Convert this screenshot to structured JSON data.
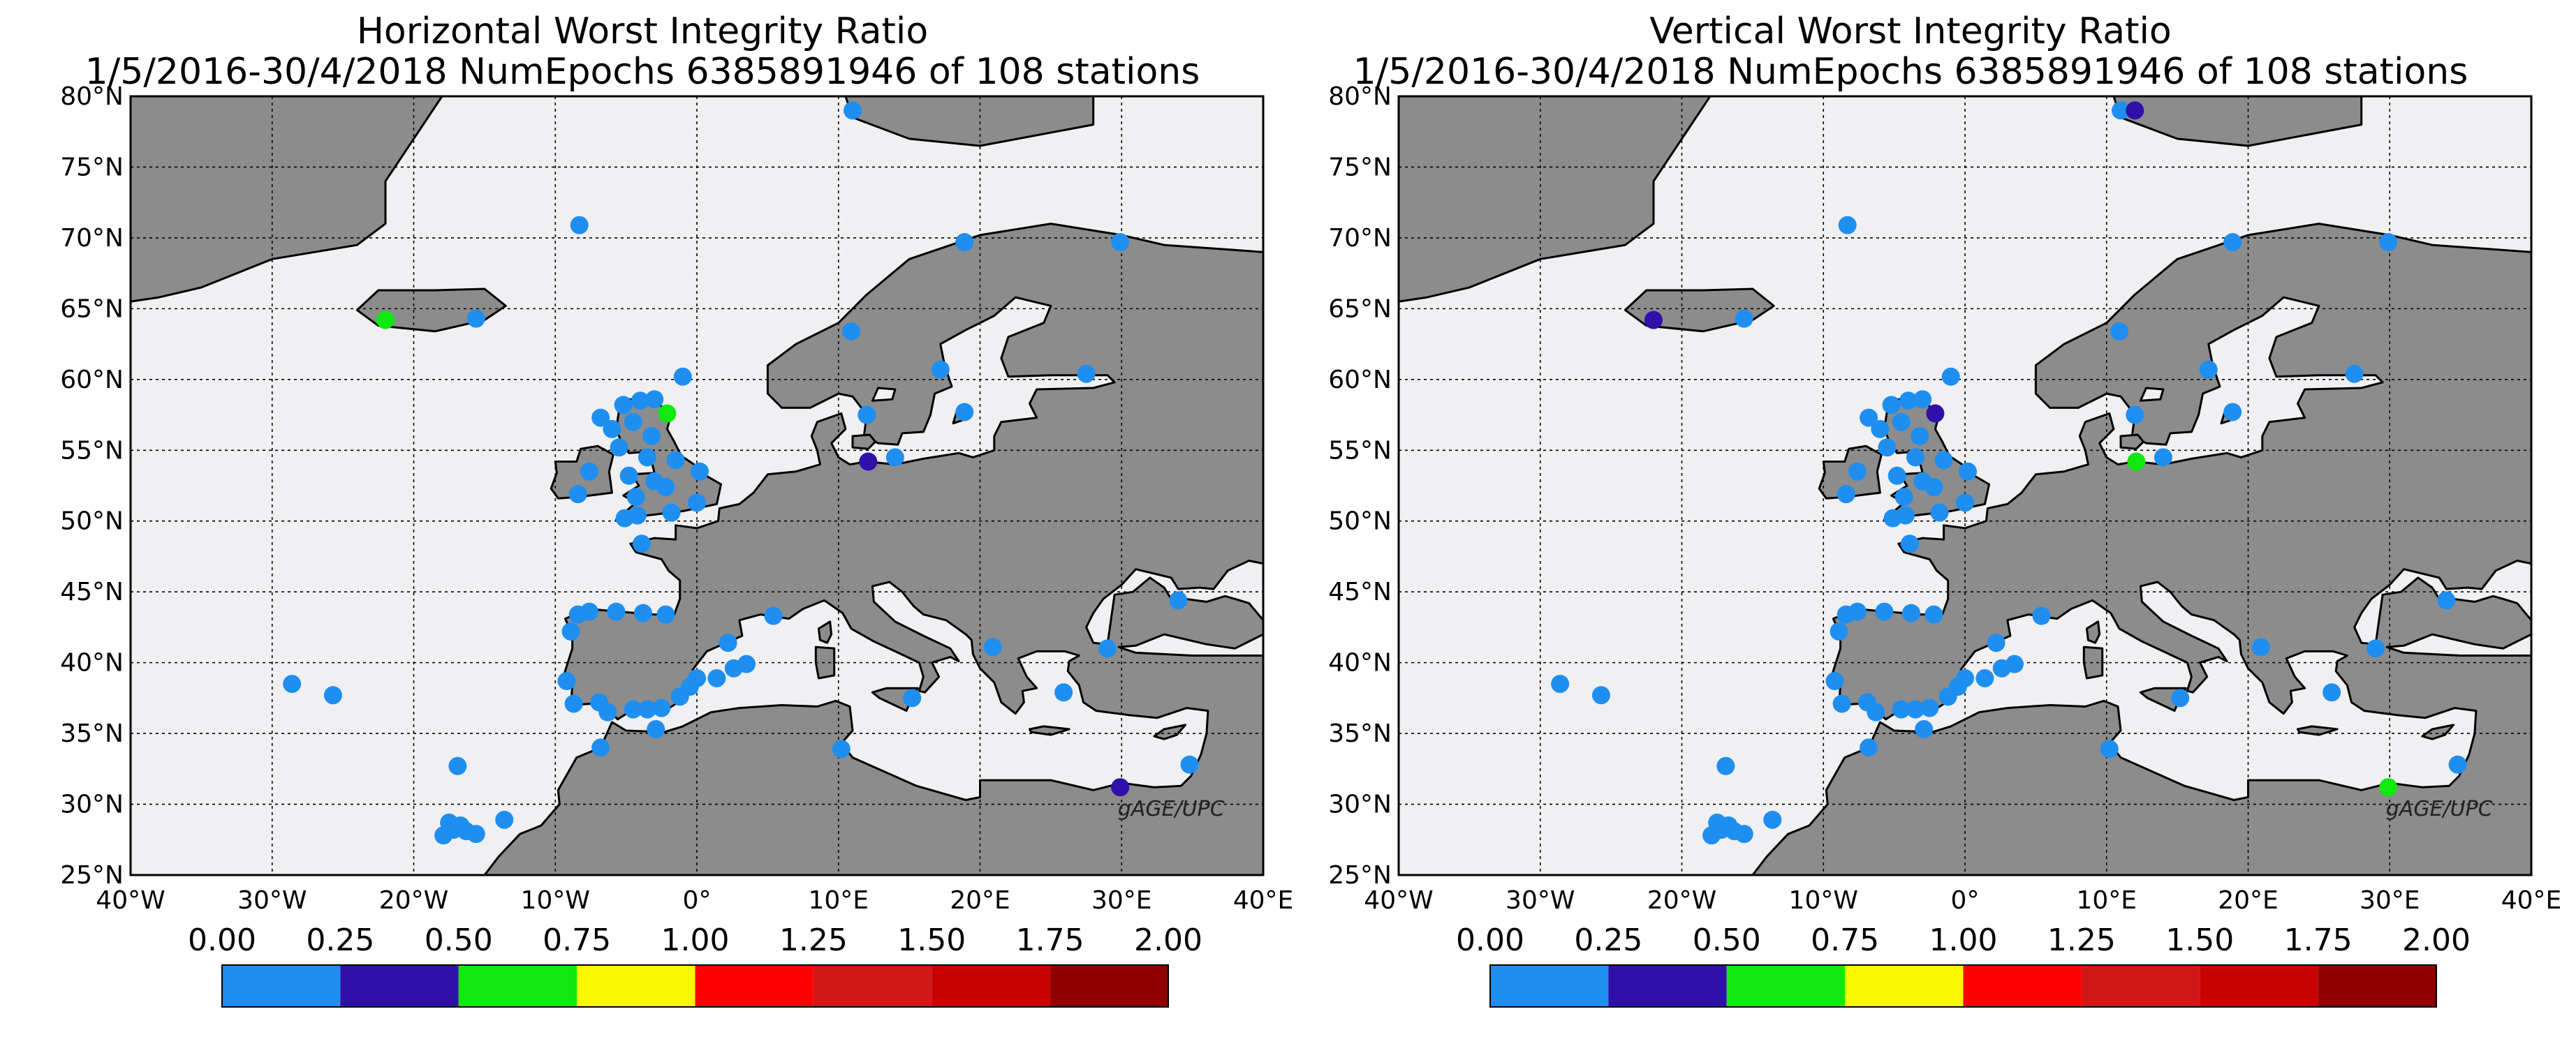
{
  "panels": [
    {
      "title_line1": "Horizontal Worst Integrity Ratio",
      "title_line2": "1/5/2016-30/4/2018 NumEpochs 6385891946 of 108 stations",
      "watermark": "gAGE/UPC",
      "highlights": [
        {
          "lon": -22.0,
          "lat": 64.2,
          "value": 0.6
        },
        {
          "lon": -2.1,
          "lat": 57.6,
          "value": 0.6
        },
        {
          "lon": 12.1,
          "lat": 54.2,
          "value": 0.35
        },
        {
          "lon": 29.9,
          "lat": 31.2,
          "value": 0.35
        }
      ]
    },
    {
      "title_line1": "Vertical Worst Integrity Ratio",
      "title_line2": "1/5/2016-30/4/2018 NumEpochs 6385891946 of 108 stations",
      "watermark": "gAGE/UPC",
      "highlights": [
        {
          "lon": -22.0,
          "lat": 64.2,
          "value": 0.35
        },
        {
          "lon": -2.1,
          "lat": 57.6,
          "value": 0.35
        },
        {
          "lon": 12.1,
          "lat": 54.2,
          "value": 0.6
        },
        {
          "lon": 29.9,
          "lat": 31.2,
          "value": 0.6
        },
        {
          "lon": 12.0,
          "lat": 79.0,
          "value": 0.35
        }
      ]
    }
  ],
  "map": {
    "lon_range": [
      -40,
      40
    ],
    "lat_range": [
      25,
      80
    ],
    "lon_ticks": [
      -40,
      -30,
      -20,
      -10,
      0,
      10,
      20,
      30,
      40
    ],
    "lat_ticks": [
      25,
      30,
      35,
      40,
      45,
      50,
      55,
      60,
      65,
      70,
      75,
      80
    ],
    "lon_labels": [
      "40°W",
      "30°W",
      "20°W",
      "10°W",
      "0°",
      "10°E",
      "20°E",
      "30°E",
      "40°E"
    ],
    "lat_labels": [
      "25°N",
      "30°N",
      "35°N",
      "40°N",
      "45°N",
      "50°N",
      "55°N",
      "60°N",
      "65°N",
      "70°N",
      "75°N",
      "80°N"
    ],
    "ocean_color": "#f0eff1",
    "land_color": "#8c8c8c",
    "grid": "dotted"
  },
  "colorbar": {
    "tick_labels": [
      "0.00",
      "0.25",
      "0.50",
      "0.75",
      "1.00",
      "1.25",
      "1.50",
      "1.75",
      "2.00"
    ],
    "bins": [
      0,
      0.25,
      0.5,
      0.75,
      1.0,
      1.25,
      1.5,
      1.75,
      2.0
    ],
    "colors": [
      "#1e8ff0",
      "#3010a8",
      "#10e810",
      "#f8f800",
      "#ff0000",
      "#d01818",
      "#c80000",
      "#900000"
    ]
  },
  "chart_data": {
    "type": "scatter",
    "title": "Horizontal / Vertical Worst Integrity Ratio",
    "xlabel": "",
    "ylabel": "",
    "xlim": [
      -40,
      40
    ],
    "ylim": [
      25,
      80
    ],
    "stations": [
      {
        "lon": -8.3,
        "lat": 70.9
      },
      {
        "lon": -15.6,
        "lat": 64.3
      },
      {
        "lon": 11.0,
        "lat": 79.0
      },
      {
        "lon": 18.9,
        "lat": 69.7
      },
      {
        "lon": 29.9,
        "lat": 69.7
      },
      {
        "lon": 10.9,
        "lat": 63.4
      },
      {
        "lon": 17.2,
        "lat": 60.7
      },
      {
        "lon": 18.9,
        "lat": 57.7
      },
      {
        "lon": 27.5,
        "lat": 60.4
      },
      {
        "lon": -1.0,
        "lat": 60.2
      },
      {
        "lon": 12.0,
        "lat": 57.5
      },
      {
        "lon": 14.0,
        "lat": 54.5
      },
      {
        "lon": -6.8,
        "lat": 57.3
      },
      {
        "lon": -6.0,
        "lat": 56.5
      },
      {
        "lon": -5.2,
        "lat": 58.2
      },
      {
        "lon": -4.0,
        "lat": 58.5
      },
      {
        "lon": -3.0,
        "lat": 58.6
      },
      {
        "lon": -4.5,
        "lat": 57.0
      },
      {
        "lon": -3.2,
        "lat": 56.0
      },
      {
        "lon": -5.5,
        "lat": 55.2
      },
      {
        "lon": -3.5,
        "lat": 54.5
      },
      {
        "lon": -1.5,
        "lat": 54.3
      },
      {
        "lon": 0.2,
        "lat": 53.5
      },
      {
        "lon": -4.8,
        "lat": 53.2
      },
      {
        "lon": -3.0,
        "lat": 52.8
      },
      {
        "lon": -4.3,
        "lat": 51.7
      },
      {
        "lon": -2.2,
        "lat": 52.4
      },
      {
        "lon": 0.0,
        "lat": 51.3
      },
      {
        "lon": -1.8,
        "lat": 50.6
      },
      {
        "lon": -4.2,
        "lat": 50.4
      },
      {
        "lon": -5.1,
        "lat": 50.2
      },
      {
        "lon": -8.4,
        "lat": 51.9
      },
      {
        "lon": -7.6,
        "lat": 53.5
      },
      {
        "lon": -3.9,
        "lat": 48.4
      },
      {
        "lon": -8.4,
        "lat": 43.4
      },
      {
        "lon": -7.6,
        "lat": 43.6
      },
      {
        "lon": -5.7,
        "lat": 43.6
      },
      {
        "lon": -3.8,
        "lat": 43.5
      },
      {
        "lon": -2.2,
        "lat": 43.4
      },
      {
        "lon": -8.9,
        "lat": 42.2
      },
      {
        "lon": -9.2,
        "lat": 38.7
      },
      {
        "lon": -8.7,
        "lat": 37.1
      },
      {
        "lon": -6.9,
        "lat": 37.2
      },
      {
        "lon": -6.3,
        "lat": 36.5
      },
      {
        "lon": -4.5,
        "lat": 36.7
      },
      {
        "lon": -3.5,
        "lat": 36.7
      },
      {
        "lon": -2.5,
        "lat": 36.8
      },
      {
        "lon": -1.2,
        "lat": 37.6
      },
      {
        "lon": -0.5,
        "lat": 38.3
      },
      {
        "lon": 0.0,
        "lat": 38.9
      },
      {
        "lon": 1.4,
        "lat": 38.9
      },
      {
        "lon": 2.6,
        "lat": 39.6
      },
      {
        "lon": 3.5,
        "lat": 39.9
      },
      {
        "lon": 2.2,
        "lat": 41.4
      },
      {
        "lon": 5.4,
        "lat": 43.3
      },
      {
        "lon": -2.9,
        "lat": 35.3
      },
      {
        "lon": -6.8,
        "lat": 34.0
      },
      {
        "lon": 10.2,
        "lat": 33.9
      },
      {
        "lon": 15.2,
        "lat": 37.5
      },
      {
        "lon": 20.9,
        "lat": 41.1
      },
      {
        "lon": 25.9,
        "lat": 37.9
      },
      {
        "lon": 29.0,
        "lat": 41.0
      },
      {
        "lon": 34.0,
        "lat": 44.4
      },
      {
        "lon": 34.8,
        "lat": 32.8
      },
      {
        "lon": -28.6,
        "lat": 38.5
      },
      {
        "lon": -25.7,
        "lat": 37.7
      },
      {
        "lon": -16.9,
        "lat": 32.7
      },
      {
        "lon": -17.9,
        "lat": 27.8
      },
      {
        "lon": -17.5,
        "lat": 28.7
      },
      {
        "lon": -16.7,
        "lat": 28.5
      },
      {
        "lon": -16.3,
        "lat": 28.1
      },
      {
        "lon": -17.2,
        "lat": 28.2
      },
      {
        "lon": -15.6,
        "lat": 27.9
      },
      {
        "lon": -13.6,
        "lat": 28.9
      }
    ]
  }
}
